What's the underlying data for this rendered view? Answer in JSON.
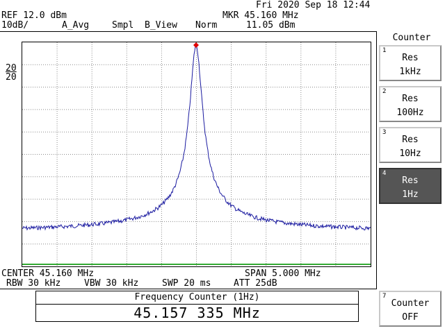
{
  "header": {
    "datetime": "Fri 2020 Sep 18 12:44",
    "ref": "REF 12.0 dBm",
    "scale": "10dB/",
    "detector": "A_Avg",
    "sampling": "Smpl",
    "trace_view": "B_View",
    "mode": "Norm",
    "marker_freq": "MKR 45.160 MHz",
    "marker_level": "11.05 dBm",
    "left_label_1": "20",
    "left_label_2": "20"
  },
  "footer": {
    "center": "CENTER 45.160 MHz",
    "span": "SPAN 5.000 MHz",
    "rbw": "RBW 30 kHz",
    "vbw": "VBW 30 kHz",
    "swp": "SWP 20 ms",
    "att": "ATT 25dB"
  },
  "counter": {
    "title": "Frequency Counter (1Hz)",
    "value": "45.157 335 MHz"
  },
  "softkeys": {
    "menu_title": "Counter",
    "items": [
      {
        "num": "1",
        "line1": "Res",
        "line2": "1kHz",
        "active": false
      },
      {
        "num": "2",
        "line1": "Res",
        "line2": "100Hz",
        "active": false
      },
      {
        "num": "3",
        "line1": "Res",
        "line2": "10Hz",
        "active": false
      },
      {
        "num": "4",
        "line1": "Res",
        "line2": "1Hz",
        "active": true
      },
      {
        "num": "7",
        "line1": "Counter",
        "line2": "OFF",
        "active": false
      }
    ]
  },
  "colors": {
    "trace": "#1a1aa0",
    "grid": "#8a8a8a",
    "marker": "#e00000",
    "limit_line": "#33aa33"
  }
}
